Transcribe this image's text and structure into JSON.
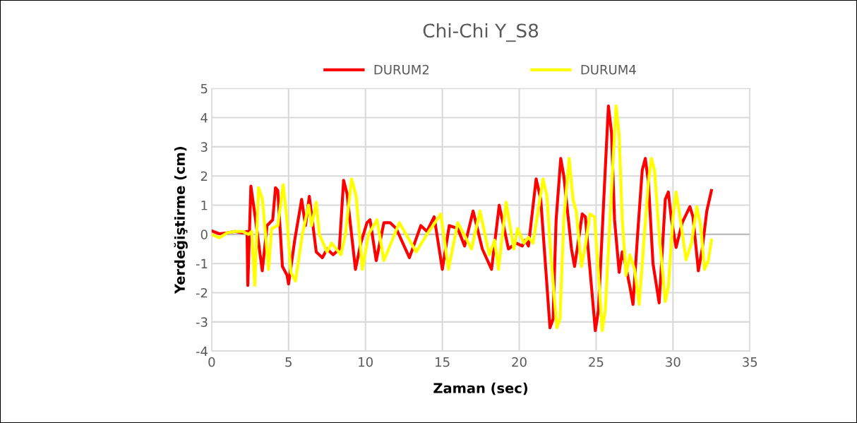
{
  "chart_data": {
    "type": "line",
    "title": "Chi-Chi Y_S8",
    "xlabel": "Zaman (sec)",
    "ylabel": "Yerdeğiştirme (cm)",
    "xlim": [
      0,
      35
    ],
    "xticks": [
      0,
      5,
      10,
      15,
      20,
      25,
      30,
      35
    ],
    "ylim": [
      -4,
      5
    ],
    "yticks": [
      -4,
      -3,
      -2,
      -1,
      0,
      1,
      2,
      3,
      4,
      5
    ],
    "grid": true,
    "legend": "top",
    "marker": "none",
    "line_style": "solid",
    "series": [
      {
        "name": "DURUM2",
        "color": "#ff0000",
        "x": [
          0,
          0.5,
          1,
          1.5,
          2,
          2.3,
          2.35,
          2.55,
          2.83,
          3.29,
          3.6,
          3.97,
          4.15,
          4.3,
          4.6,
          4.9,
          5.0,
          5.4,
          5.85,
          6.1,
          6.35,
          6.8,
          7.2,
          7.5,
          7.9,
          8.3,
          8.58,
          8.8,
          9.35,
          9.7,
          10.1,
          10.3,
          10.7,
          11.2,
          11.6,
          12.0,
          12.86,
          13.6,
          14.0,
          14.47,
          15.0,
          15.45,
          16.0,
          16.45,
          17.0,
          17.6,
          18.2,
          18.7,
          19.3,
          19.8,
          20.2,
          20.4,
          20.6,
          21.1,
          21.4,
          21.7,
          22.0,
          22.2,
          22.4,
          22.7,
          22.9,
          23.1,
          23.4,
          23.6,
          23.8,
          24.1,
          24.3,
          24.6,
          24.95,
          25.15,
          25.5,
          25.8,
          26.0,
          26.2,
          26.5,
          26.7,
          26.9,
          27.2,
          27.4,
          27.7,
          28.0,
          28.2,
          28.4,
          28.7,
          29.1,
          29.3,
          29.5,
          29.7,
          29.9,
          30.2,
          30.6,
          31.1,
          31.3,
          31.65,
          31.9,
          32.2,
          32.5
        ],
        "values": [
          0.12,
          0.02,
          0.05,
          0.1,
          0.05,
          0.1,
          -1.75,
          1.65,
          0.6,
          -1.25,
          0.3,
          0.5,
          1.6,
          1.5,
          -1.1,
          -1.4,
          -1.7,
          -0.2,
          1.2,
          0.3,
          1.3,
          -0.6,
          -0.8,
          -0.5,
          -0.7,
          -0.5,
          1.85,
          1.4,
          -1.2,
          -0.3,
          0.4,
          0.5,
          -0.9,
          0.4,
          0.4,
          0.2,
          -0.8,
          0.3,
          0.1,
          0.6,
          -1.2,
          0.3,
          0.2,
          -0.4,
          0.8,
          -0.5,
          -1.2,
          1.0,
          -0.5,
          -0.3,
          -0.4,
          -0.2,
          -0.4,
          1.9,
          1.2,
          -1.0,
          -3.2,
          -2.9,
          0.5,
          2.6,
          2.0,
          1.0,
          -0.5,
          -1.1,
          -0.4,
          0.7,
          0.6,
          -1.2,
          -3.3,
          -2.6,
          1.2,
          4.4,
          3.5,
          0.5,
          -1.3,
          -0.6,
          -1.0,
          -1.8,
          -2.4,
          0.0,
          2.2,
          2.6,
          1.8,
          -1.0,
          -2.35,
          -0.6,
          1.2,
          1.45,
          0.5,
          -0.45,
          0.4,
          0.95,
          0.6,
          -1.25,
          -0.5,
          0.8,
          1.5
        ]
      },
      {
        "name": "DURUM4",
        "color": "#ffff00",
        "x": [
          0,
          0.5,
          1,
          1.5,
          2,
          2.4,
          2.6,
          2.8,
          3.05,
          3.3,
          3.7,
          3.9,
          4.3,
          4.65,
          4.9,
          5.15,
          5.45,
          5.9,
          6.3,
          6.5,
          6.8,
          7.0,
          7.5,
          7.8,
          8.4,
          8.7,
          9.1,
          9.4,
          9.8,
          10.2,
          10.75,
          11.2,
          12.2,
          13.3,
          14.0,
          14.9,
          15.4,
          16.0,
          16.9,
          17.45,
          18.05,
          18.4,
          18.65,
          19.15,
          19.65,
          19.9,
          20.3,
          20.6,
          20.9,
          21.55,
          21.8,
          22.1,
          22.45,
          22.65,
          22.9,
          23.25,
          23.5,
          23.7,
          24.05,
          24.3,
          24.6,
          24.9,
          25.4,
          25.6,
          26.0,
          26.3,
          26.5,
          26.7,
          26.95,
          27.2,
          27.5,
          27.8,
          28.1,
          28.4,
          28.6,
          28.8,
          29.1,
          29.5,
          29.7,
          30.0,
          30.2,
          30.4,
          30.85,
          31.2,
          31.55,
          31.8,
          32.05,
          32.3,
          32.5
        ],
        "values": [
          0.0,
          -0.12,
          0.05,
          0.1,
          0.1,
          0.0,
          0.1,
          -1.75,
          1.6,
          1.2,
          -1.2,
          0.2,
          0.3,
          1.7,
          0.5,
          -1.3,
          -1.6,
          0.0,
          1.0,
          0.3,
          1.1,
          0.0,
          -0.6,
          -0.3,
          -0.7,
          0.0,
          1.9,
          1.3,
          -1.2,
          0.0,
          0.5,
          -0.9,
          0.4,
          -0.6,
          0.0,
          0.7,
          -1.2,
          0.4,
          -0.5,
          0.8,
          -0.7,
          -0.2,
          -1.2,
          1.1,
          -0.5,
          0.2,
          -0.3,
          -0.1,
          -0.3,
          1.9,
          1.3,
          -1.0,
          -3.2,
          -2.9,
          0.5,
          2.6,
          1.2,
          0.8,
          -1.1,
          -0.4,
          0.7,
          0.6,
          -3.3,
          -2.6,
          1.5,
          4.4,
          3.4,
          0.5,
          -1.4,
          -0.7,
          -1.2,
          -2.4,
          -0.3,
          1.8,
          2.6,
          2.2,
          0.0,
          -2.3,
          -1.8,
          0.6,
          1.45,
          0.8,
          -0.87,
          -0.3,
          0.95,
          0.3,
          -1.2,
          -0.9,
          -0.2
        ]
      }
    ]
  }
}
